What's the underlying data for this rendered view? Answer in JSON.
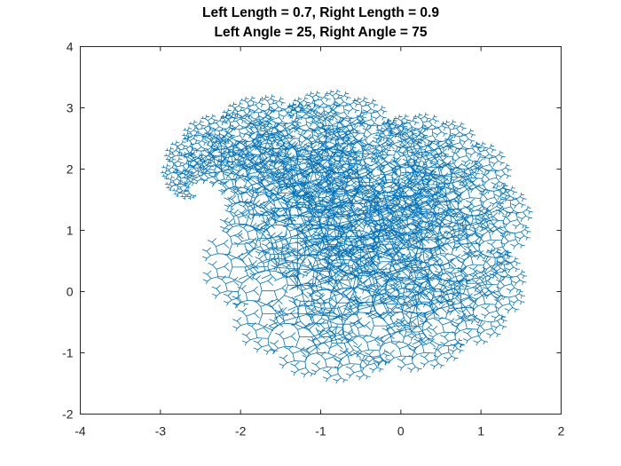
{
  "chart_data": {
    "type": "line",
    "title": [
      "Left Length = 0.7, Right Length = 0.9",
      "Left Angle = 25, Right Angle = 75"
    ],
    "xlabel": "",
    "ylabel": "",
    "xlim": [
      -4,
      2
    ],
    "ylim": [
      -2,
      4
    ],
    "xticks": [
      -4,
      -3,
      -2,
      -1,
      0,
      1,
      2
    ],
    "yticks": [
      -2,
      -1,
      0,
      1,
      2,
      3,
      4
    ],
    "xtick_labels": [
      "-4",
      "-3",
      "-2",
      "-1",
      "0",
      "1",
      "2"
    ],
    "ytick_labels": [
      "-2",
      "-1",
      "0",
      "1",
      "2",
      "3",
      "4"
    ],
    "grid": false,
    "box": true,
    "series": [
      {
        "kind": "fractal-binary-tree",
        "color": "#0072BD",
        "left_length_ratio": 0.7,
        "right_length_ratio": 0.9,
        "left_angle_deg": 25,
        "right_angle_deg": 75,
        "approx_extent": {
          "x": [
            -3.05,
            1.7
          ],
          "y": [
            -1.5,
            3.3
          ]
        }
      }
    ]
  }
}
